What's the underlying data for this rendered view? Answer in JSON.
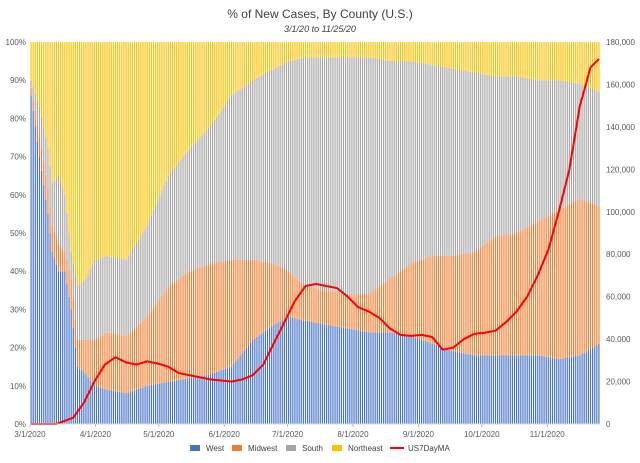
{
  "chart_data": {
    "type": "bar",
    "stacked": true,
    "percent_stacked": true,
    "title": "% of New Cases, By County (U.S.)",
    "subtitle": "3/1/20 to 11/25/20",
    "x_tick_labels": [
      "3/1/2020",
      "4/1/2020",
      "5/1/2020",
      "6/1/2020",
      "7/1/2020",
      "8/1/2020",
      "9/1/2020",
      "10/1/2020",
      "11/1/2020"
    ],
    "x_tick_day_index": [
      0,
      31,
      61,
      92,
      122,
      153,
      184,
      214,
      245
    ],
    "num_days": 270,
    "y_left_ticks": [
      "0%",
      "10%",
      "20%",
      "30%",
      "40%",
      "50%",
      "60%",
      "70%",
      "80%",
      "90%",
      "100%"
    ],
    "y_left_range": [
      0,
      100
    ],
    "y_right_ticks": [
      "0",
      "20,000",
      "40,000",
      "60,000",
      "80,000",
      "100,000",
      "120,000",
      "140,000",
      "160,000",
      "180,000"
    ],
    "y_right_range": [
      0,
      180000
    ],
    "series_colors": {
      "West": "#4472c4",
      "Midwest": "#ed7d31",
      "South": "#a5a5a5",
      "Northeast": "#ffc000",
      "US7DayMA": "#ff0000"
    },
    "legend": [
      "West",
      "Midwest",
      "South",
      "Northeast",
      "US7DayMA"
    ],
    "legend_position": "bottom",
    "cumulative_share_keypoints_note": "day index -> cumulative % (West, West+Midwest, West+Midwest+South)",
    "share_keypoints": [
      [
        0,
        86,
        88,
        90
      ],
      [
        4,
        70,
        75,
        83
      ],
      [
        8,
        55,
        62,
        72
      ],
      [
        10,
        45,
        52,
        63
      ],
      [
        13,
        40,
        47,
        65
      ],
      [
        16,
        40,
        45,
        60
      ],
      [
        19,
        30,
        38,
        45
      ],
      [
        22,
        15,
        22,
        36
      ],
      [
        26,
        13,
        22,
        38
      ],
      [
        30,
        10,
        22,
        43
      ],
      [
        36,
        9,
        24,
        44
      ],
      [
        45,
        8,
        23,
        43
      ],
      [
        55,
        10,
        28,
        52
      ],
      [
        65,
        11,
        36,
        65
      ],
      [
        75,
        12,
        40,
        72
      ],
      [
        85,
        13,
        42,
        78
      ],
      [
        95,
        15,
        43,
        86
      ],
      [
        105,
        22,
        43,
        90
      ],
      [
        115,
        26,
        42,
        93
      ],
      [
        122,
        28,
        40,
        95
      ],
      [
        130,
        27,
        36,
        96
      ],
      [
        140,
        26,
        35,
        96
      ],
      [
        150,
        25,
        34,
        96
      ],
      [
        160,
        24,
        34,
        96
      ],
      [
        170,
        24,
        38,
        95
      ],
      [
        180,
        23,
        42,
        95
      ],
      [
        190,
        21,
        44,
        94
      ],
      [
        200,
        19,
        44,
        93
      ],
      [
        210,
        18,
        45,
        92
      ],
      [
        220,
        18,
        49,
        91
      ],
      [
        230,
        18,
        50,
        91
      ],
      [
        240,
        18,
        53,
        90
      ],
      [
        250,
        17,
        56,
        90
      ],
      [
        260,
        18,
        59,
        89
      ],
      [
        269,
        21,
        57,
        87
      ]
    ],
    "us7dayma_keypoints": [
      [
        0,
        0
      ],
      [
        12,
        0
      ],
      [
        20,
        3000
      ],
      [
        25,
        10000
      ],
      [
        30,
        20000
      ],
      [
        35,
        28000
      ],
      [
        40,
        31500
      ],
      [
        45,
        29000
      ],
      [
        50,
        28000
      ],
      [
        55,
        29500
      ],
      [
        60,
        28500
      ],
      [
        65,
        27000
      ],
      [
        70,
        24000
      ],
      [
        75,
        23000
      ],
      [
        80,
        22000
      ],
      [
        85,
        21000
      ],
      [
        90,
        20500
      ],
      [
        95,
        20000
      ],
      [
        100,
        21000
      ],
      [
        105,
        23000
      ],
      [
        110,
        28000
      ],
      [
        115,
        38000
      ],
      [
        120,
        48000
      ],
      [
        125,
        58000
      ],
      [
        130,
        65000
      ],
      [
        135,
        66000
      ],
      [
        140,
        65000
      ],
      [
        145,
        64000
      ],
      [
        150,
        60000
      ],
      [
        155,
        55000
      ],
      [
        160,
        53000
      ],
      [
        165,
        50000
      ],
      [
        170,
        45000
      ],
      [
        175,
        42000
      ],
      [
        180,
        41500
      ],
      [
        185,
        42000
      ],
      [
        190,
        41000
      ],
      [
        195,
        35000
      ],
      [
        200,
        36000
      ],
      [
        205,
        40000
      ],
      [
        210,
        42500
      ],
      [
        215,
        43000
      ],
      [
        220,
        44000
      ],
      [
        225,
        48000
      ],
      [
        230,
        53000
      ],
      [
        235,
        60000
      ],
      [
        240,
        70000
      ],
      [
        245,
        82000
      ],
      [
        250,
        100000
      ],
      [
        255,
        120000
      ],
      [
        260,
        150000
      ],
      [
        265,
        168000
      ],
      [
        269,
        172000
      ]
    ]
  }
}
